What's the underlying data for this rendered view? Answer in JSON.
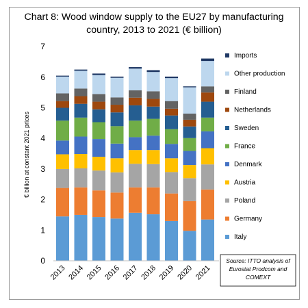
{
  "chart_data": {
    "type": "bar",
    "stacked": true,
    "title": "Chart 8: Wood window supply to the EU27 by manufacturing country, 2013 to 2021 (€ billion)",
    "xlabel": "",
    "ylabel": "€ billion at constant 2021 prices",
    "ylim": [
      0,
      7
    ],
    "yticks": [
      "0",
      "1",
      "2",
      "3",
      "4",
      "5",
      "6",
      "7"
    ],
    "categories": [
      "2013",
      "2014",
      "2015",
      "2016",
      "2017",
      "2018",
      "2019",
      "2020",
      "2021"
    ],
    "series": [
      {
        "name": "Italy",
        "color": "#5b9bd5",
        "values": [
          1.45,
          1.5,
          1.43,
          1.38,
          1.57,
          1.52,
          1.3,
          0.98,
          1.35
        ]
      },
      {
        "name": "Germany",
        "color": "#ed7d31",
        "values": [
          0.93,
          0.9,
          0.87,
          0.85,
          0.83,
          0.88,
          0.9,
          0.97,
          0.98
        ]
      },
      {
        "name": "Poland",
        "color": "#a5a5a5",
        "values": [
          0.62,
          0.62,
          0.65,
          0.66,
          0.77,
          0.76,
          0.7,
          0.75,
          0.82
        ]
      },
      {
        "name": "Austria",
        "color": "#ffc000",
        "values": [
          0.48,
          0.47,
          0.45,
          0.46,
          0.45,
          0.46,
          0.45,
          0.43,
          0.53
        ]
      },
      {
        "name": "Denmark",
        "color": "#4472c4",
        "values": [
          0.45,
          0.57,
          0.58,
          0.48,
          0.42,
          0.47,
          0.47,
          0.46,
          0.55
        ]
      },
      {
        "name": "France",
        "color": "#70ad47",
        "values": [
          0.65,
          0.62,
          0.55,
          0.57,
          0.54,
          0.55,
          0.48,
          0.42,
          0.45
        ]
      },
      {
        "name": "Sweden",
        "color": "#255e91",
        "values": [
          0.42,
          0.45,
          0.42,
          0.45,
          0.5,
          0.4,
          0.45,
          0.38,
          0.52
        ]
      },
      {
        "name": "Netherlands",
        "color": "#9e480e",
        "values": [
          0.22,
          0.25,
          0.25,
          0.25,
          0.25,
          0.25,
          0.22,
          0.22,
          0.3
        ]
      },
      {
        "name": "Finland",
        "color": "#636363",
        "values": [
          0.25,
          0.25,
          0.25,
          0.24,
          0.24,
          0.25,
          0.25,
          0.2,
          0.2
        ]
      },
      {
        "name": "Other production",
        "color": "#bdd7ee",
        "values": [
          0.55,
          0.58,
          0.62,
          0.64,
          0.71,
          0.63,
          0.75,
          0.86,
          0.83
        ]
      },
      {
        "name": "Imports",
        "color": "#1f3864",
        "values": [
          0.03,
          0.04,
          0.05,
          0.04,
          0.05,
          0.06,
          0.05,
          0.03,
          0.08
        ]
      }
    ],
    "legend_position": "right",
    "grid": false,
    "source_note": [
      "Source: ITTO analysis of",
      "Eurostat Prodcom and",
      "COMEXT"
    ]
  }
}
